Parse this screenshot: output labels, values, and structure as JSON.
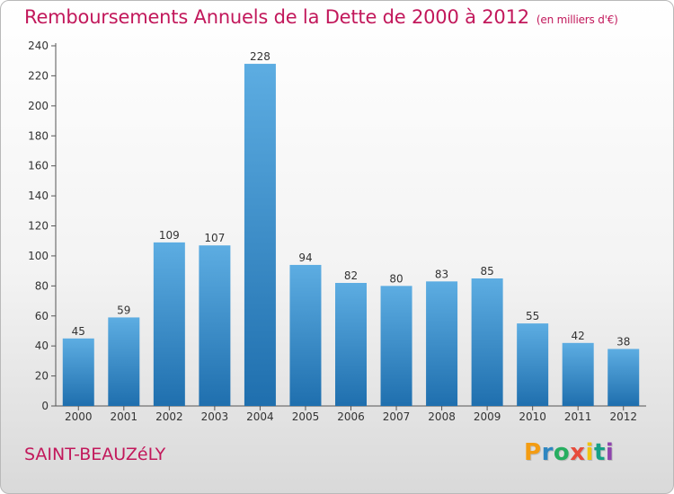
{
  "title": "Remboursements Annuels de la Dette de 2000 à 2012",
  "unit": "(en milliers d'€)",
  "city": "SAINT-BEAUZéLY",
  "logo": {
    "letters": [
      "P",
      "r",
      "o",
      "x",
      "i",
      "t",
      "i"
    ],
    "colors": [
      "#f39c12",
      "#2e86c1",
      "#27ae60",
      "#e74c3c",
      "#f1c40f",
      "#16a085",
      "#8e44ad"
    ]
  },
  "colors": {
    "bar_top": "#5dade2",
    "bar_bottom": "#1f6fae",
    "title": "#c2185b"
  },
  "chart_data": {
    "type": "bar",
    "categories": [
      "2000",
      "2001",
      "2002",
      "2003",
      "2004",
      "2005",
      "2006",
      "2007",
      "2008",
      "2009",
      "2010",
      "2011",
      "2012"
    ],
    "values": [
      45,
      59,
      109,
      107,
      228,
      94,
      82,
      80,
      83,
      85,
      55,
      42,
      38
    ],
    "ylim": [
      0,
      240
    ],
    "yticks": [
      0,
      20,
      40,
      60,
      80,
      100,
      120,
      140,
      160,
      180,
      200,
      220,
      240
    ],
    "grid": false
  }
}
